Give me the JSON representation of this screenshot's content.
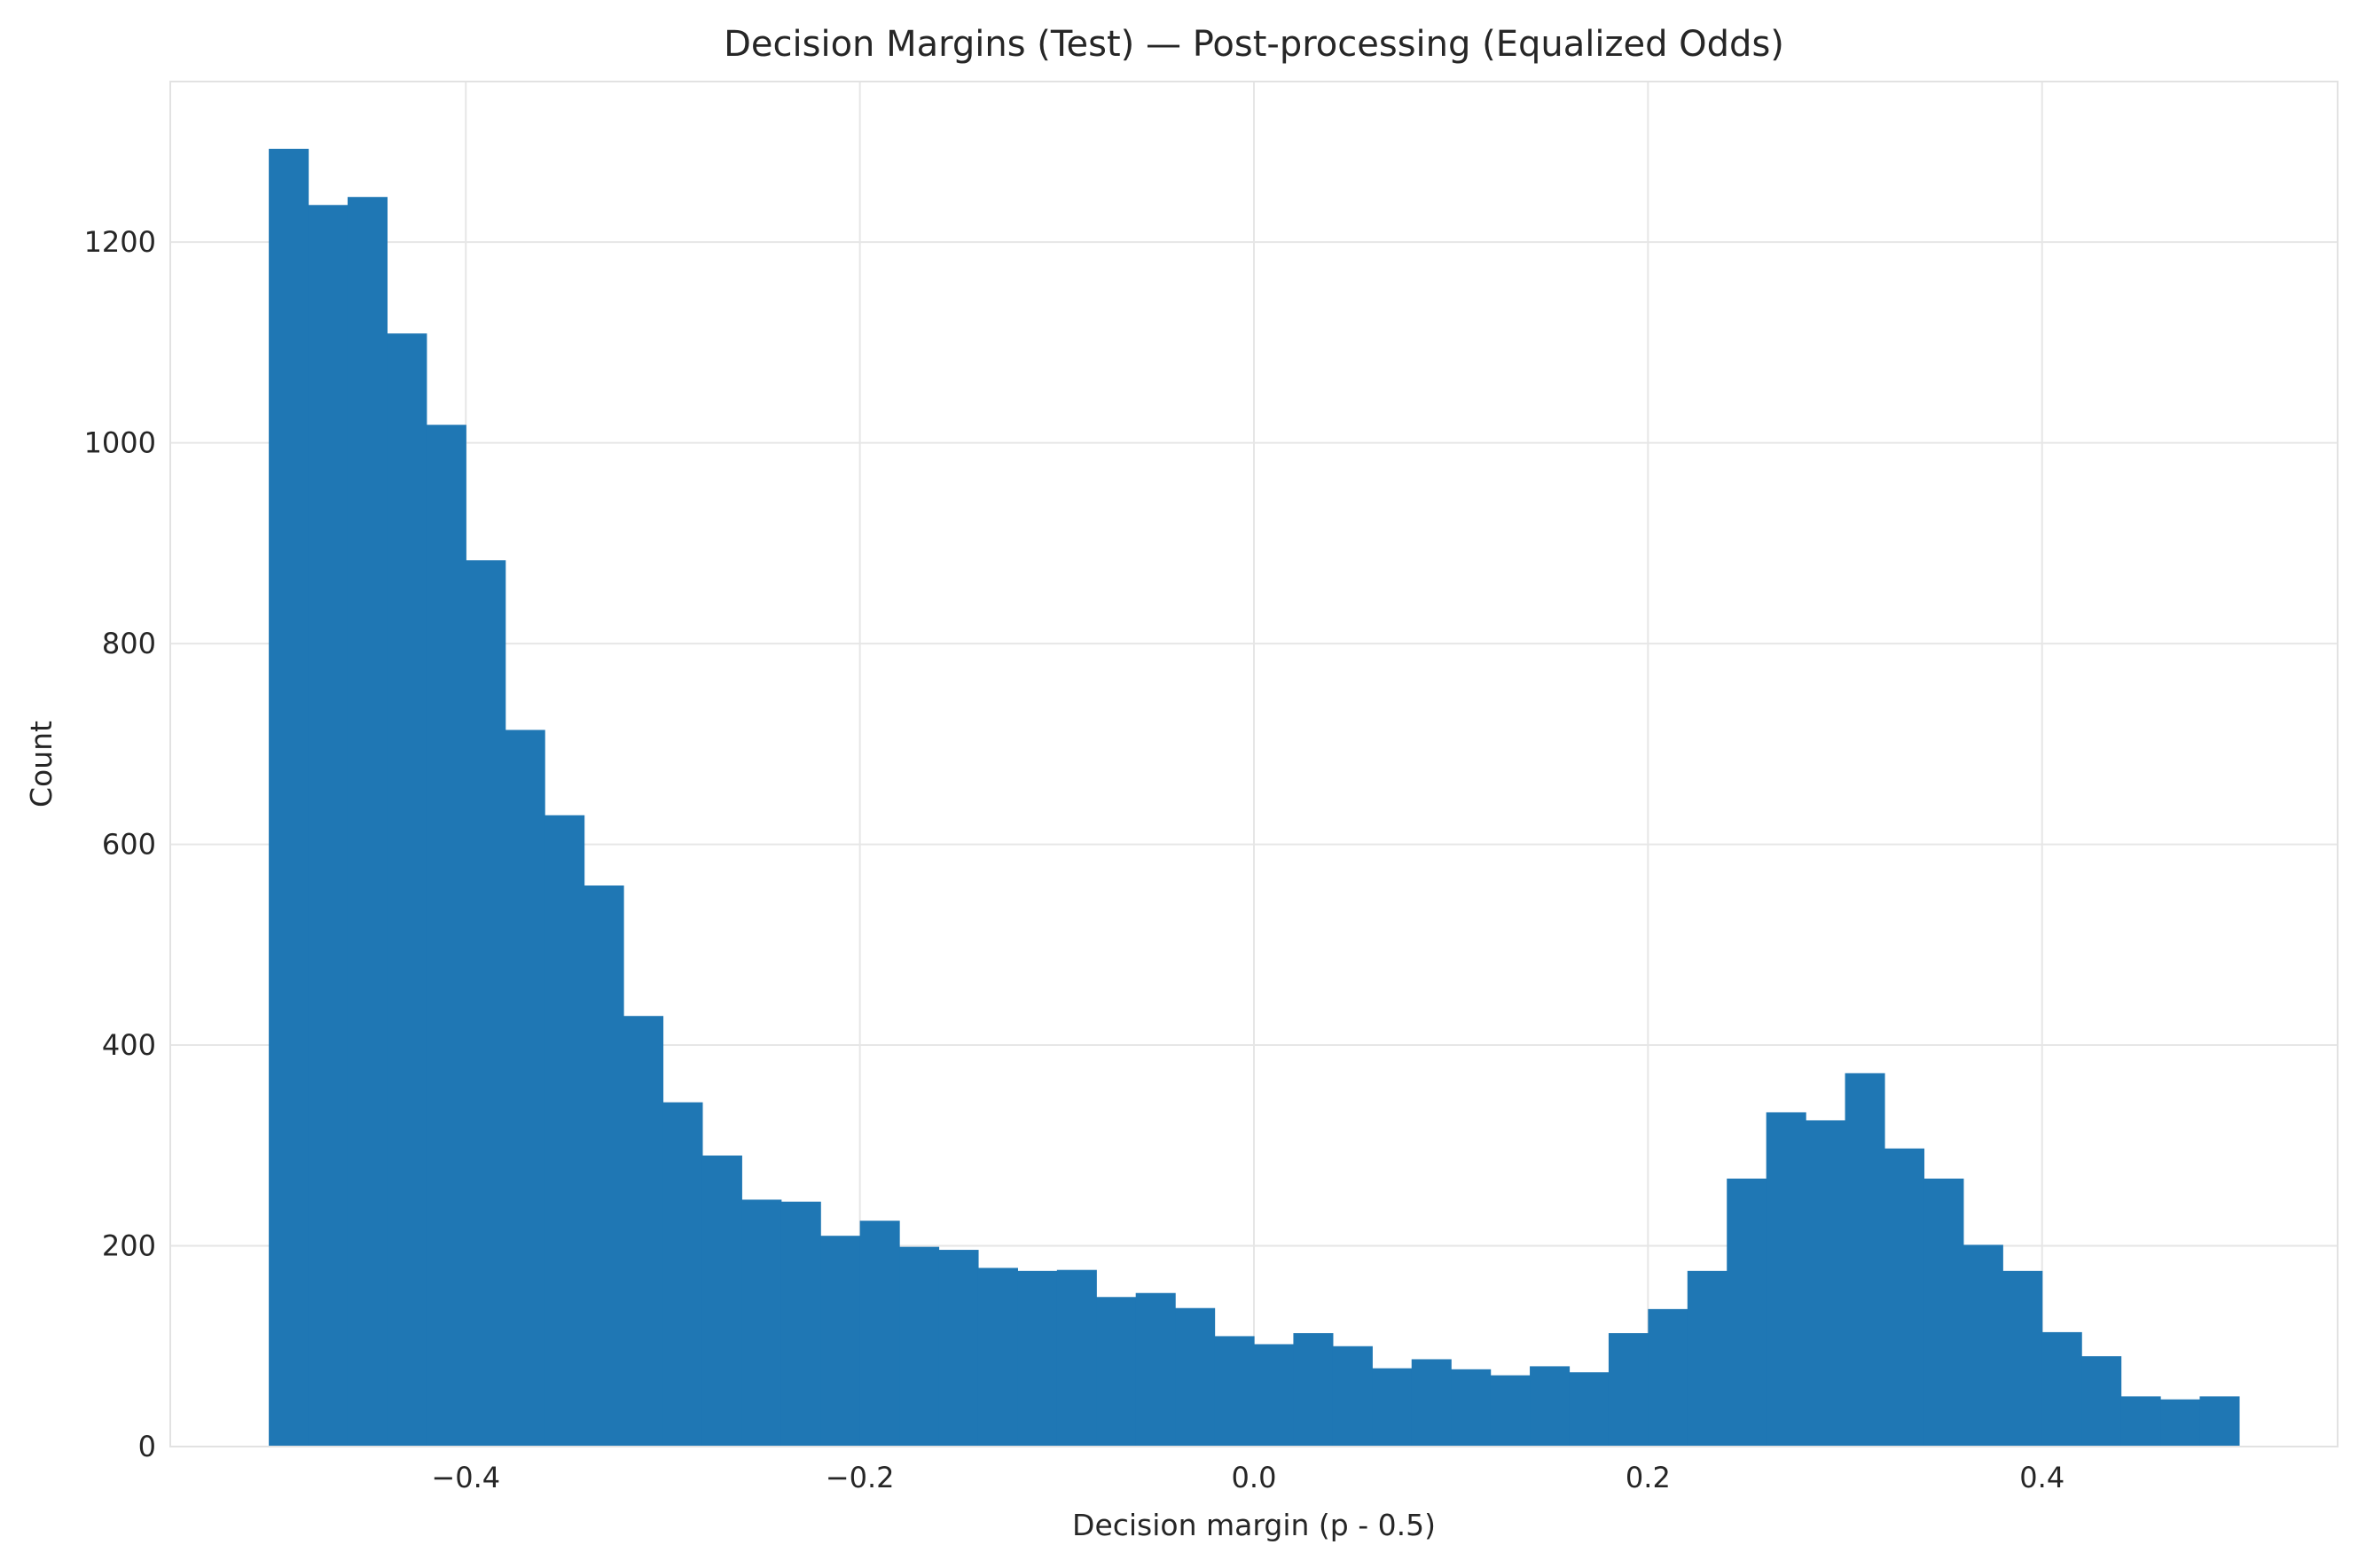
{
  "chart_data": {
    "type": "bar",
    "title": "Decision Margins (Test) — Post-processing (Equalized Odds)",
    "xlabel": "Decision margin (p - 0.5)",
    "ylabel": "Count",
    "xlim": [
      -0.55,
      0.55
    ],
    "ylim": [
      0,
      1360
    ],
    "xticks": [
      -0.4,
      -0.2,
      0.0,
      0.2,
      0.4
    ],
    "xtick_labels": [
      "−0.4",
      "−0.2",
      "0.0",
      "0.2",
      "0.4"
    ],
    "yticks": [
      0,
      200,
      400,
      600,
      800,
      1000,
      1200
    ],
    "ytick_labels": [
      "0",
      "200",
      "400",
      "600",
      "800",
      "1000",
      "1200"
    ],
    "grid": true,
    "bar_color": "#1f77b4",
    "bin_start": -0.5,
    "bin_end": 0.5,
    "bins": 50,
    "values": [
      1293,
      1237,
      1245,
      1109,
      1018,
      883,
      714,
      629,
      559,
      429,
      343,
      290,
      246,
      244,
      210,
      225,
      199,
      196,
      178,
      175,
      176,
      149,
      153,
      138,
      110,
      102,
      113,
      100,
      78,
      87,
      77,
      71,
      80,
      74,
      113,
      137,
      175,
      267,
      333,
      325,
      372,
      297,
      267,
      201,
      175,
      114,
      90,
      50,
      47,
      50
    ]
  }
}
